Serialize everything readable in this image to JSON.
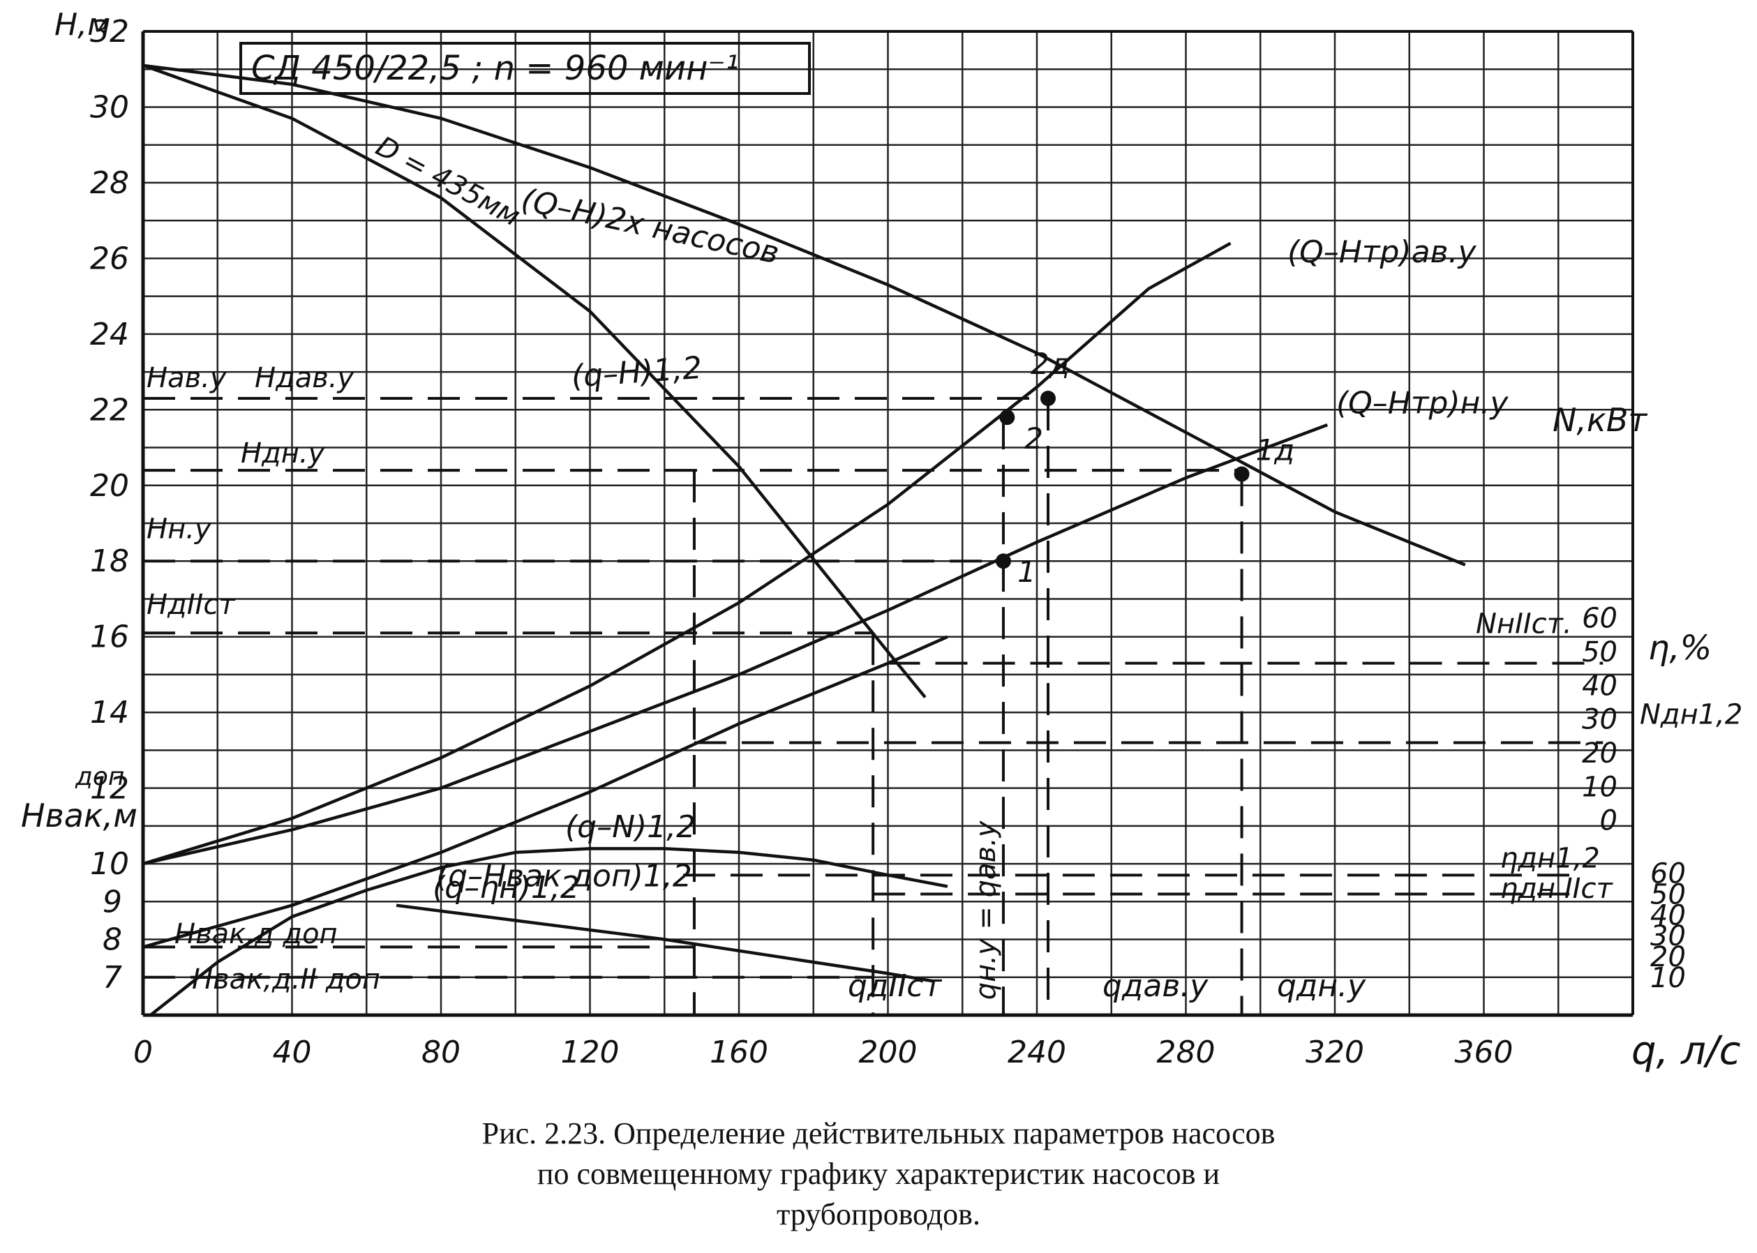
{
  "caption": {
    "line1": "Рис. 2.23. Определение действительных параметров насосов",
    "line2": "по совмещенному графику характеристик насосов и",
    "line3": "трубопроводов."
  },
  "chart_data": {
    "type": "line",
    "title": "СД 450/22,5 ;  n = 960 мин⁻¹",
    "xlabel": "q, л/с",
    "ylabel": "H,м",
    "xlim": [
      0,
      400
    ],
    "ylim": [
      6,
      32
    ],
    "grid": true,
    "x_ticks": [
      "0",
      "40",
      "80",
      "120",
      "160",
      "200",
      "240",
      "280",
      "320",
      "360"
    ],
    "y_ticks": [
      "10",
      "12",
      "14",
      "16",
      "18",
      "20",
      "22",
      "24",
      "26",
      "28",
      "30",
      "32"
    ],
    "y2_label": "Hвак,м",
    "y2_label_sup": "доп",
    "y2_ticks": [
      "7",
      "8",
      "9"
    ],
    "power_axis": {
      "label": "N,кВт",
      "ticks": [
        "0",
        "10",
        "20",
        "30",
        "40",
        "50",
        "60"
      ]
    },
    "eff_axis": {
      "label": "η,%",
      "ticks": [
        "10",
        "20",
        "30",
        "40",
        "50",
        "60"
      ]
    },
    "series": [
      {
        "name": "(Q–H)2х насосов",
        "points": [
          [
            0,
            31.1
          ],
          [
            40,
            30.6
          ],
          [
            80,
            29.7
          ],
          [
            120,
            28.4
          ],
          [
            160,
            26.9
          ],
          [
            200,
            25.3
          ],
          [
            240,
            23.5
          ],
          [
            280,
            21.4
          ],
          [
            320,
            19.3
          ],
          [
            355,
            17.9
          ]
        ]
      },
      {
        "name": "(q–H)1,2",
        "points": [
          [
            0,
            31.1
          ],
          [
            40,
            29.7
          ],
          [
            80,
            27.6
          ],
          [
            120,
            24.6
          ],
          [
            160,
            20.5
          ],
          [
            200,
            15.6
          ],
          [
            210,
            14.4
          ]
        ]
      },
      {
        "name": "(Q–Hтр)ав.у",
        "points": [
          [
            0,
            10.0
          ],
          [
            40,
            11.2
          ],
          [
            80,
            12.8
          ],
          [
            120,
            14.7
          ],
          [
            160,
            16.9
          ],
          [
            200,
            19.5
          ],
          [
            240,
            22.6
          ],
          [
            270,
            25.2
          ],
          [
            292,
            26.4
          ]
        ]
      },
      {
        "name": "(Q–Hтр)н.у",
        "points": [
          [
            0,
            10.0
          ],
          [
            40,
            10.9
          ],
          [
            80,
            12.0
          ],
          [
            120,
            13.5
          ],
          [
            160,
            15.0
          ],
          [
            200,
            16.7
          ],
          [
            240,
            18.5
          ],
          [
            280,
            20.2
          ],
          [
            318,
            21.6
          ]
        ]
      },
      {
        "name": "(q–N)1,2",
        "points": [
          [
            0,
            7.8
          ],
          [
            40,
            8.9
          ],
          [
            80,
            10.3
          ],
          [
            120,
            11.9
          ],
          [
            160,
            13.7
          ],
          [
            200,
            15.3
          ],
          [
            216,
            16.0
          ]
        ]
      },
      {
        "name": "(q–ηн)1,2",
        "points": [
          [
            2,
            6.0
          ],
          [
            20,
            7.4
          ],
          [
            40,
            8.6
          ],
          [
            60,
            9.3
          ],
          [
            80,
            9.9
          ],
          [
            100,
            10.3
          ],
          [
            120,
            10.4
          ],
          [
            140,
            10.4
          ],
          [
            160,
            10.3
          ],
          [
            180,
            10.1
          ],
          [
            200,
            9.7
          ],
          [
            216,
            9.4
          ]
        ]
      },
      {
        "name": "(q–Hвак доп)1,2",
        "points": [
          [
            68,
            8.9
          ],
          [
            100,
            8.5
          ],
          [
            140,
            8.0
          ],
          [
            180,
            7.4
          ],
          [
            200,
            7.1
          ],
          [
            212,
            6.9
          ]
        ]
      }
    ],
    "reference_lines_H": [
      {
        "label": "Hав.у",
        "y": 22.3
      },
      {
        "label": "Hдав.у",
        "y": 22.3
      },
      {
        "label": "Hдн.у",
        "y": 20.4
      },
      {
        "label": "Hн.у",
        "y": 18.0
      },
      {
        "label": "HдIIст",
        "y": 16.1
      },
      {
        "label": "NнIIст.",
        "y": 15.3
      },
      {
        "label": "Nдн1,2",
        "y": 13.2
      },
      {
        "label": "ηдн1,2",
        "y": 9.7
      },
      {
        "label": "ηдн IIст",
        "y": 9.2
      },
      {
        "label": "Hвак,д доп",
        "y": 7.8
      },
      {
        "label": "Hвак,д.II доп",
        "y": 7.0
      }
    ],
    "reference_lines_q": [
      {
        "label": "qдIIст",
        "x": 196
      },
      {
        "label": "qн.у = qав.у",
        "x": 231
      },
      {
        "label": "qдав.у",
        "x": 243
      },
      {
        "label": "qдн.у",
        "x": 295
      },
      {
        "label": "",
        "x": 148
      }
    ],
    "points_labeled": [
      {
        "label": "1д",
        "x": 295,
        "y": 20.3
      },
      {
        "label": "2д",
        "x": 243,
        "y": 22.3
      },
      {
        "label": "1",
        "x": 231,
        "y": 18.0
      },
      {
        "label": "2",
        "x": 232,
        "y": 21.8
      }
    ]
  }
}
